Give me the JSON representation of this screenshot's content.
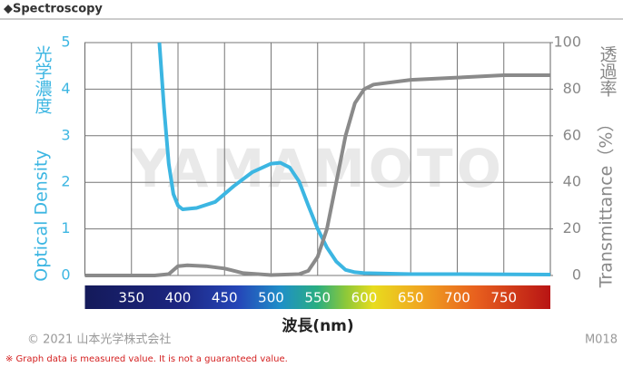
{
  "header": "◆Spectroscopy",
  "chart_data": {
    "type": "line",
    "watermark": "YAMAMOTO",
    "xlabel": "波長(nm)",
    "ylabel": "Optical Density",
    "ylabel_ja": "光学濃度",
    "y2label": "Transmittance（%）",
    "y2label_ja": "透過率",
    "xlim": [
      300,
      800
    ],
    "xticks": [
      350,
      400,
      450,
      500,
      550,
      600,
      650,
      700,
      750
    ],
    "ylim": [
      0,
      5
    ],
    "yticks": [
      0,
      1,
      2,
      3,
      4,
      5
    ],
    "y2lim": [
      0,
      100
    ],
    "y2ticks": [
      0,
      20,
      40,
      60,
      80,
      100
    ],
    "grid": true,
    "series": [
      {
        "name": "Optical Density",
        "color": "#3cb6e2",
        "x": [
          380,
          385,
          390,
          395,
          400,
          405,
          420,
          440,
          460,
          480,
          500,
          510,
          520,
          530,
          540,
          550,
          560,
          570,
          580,
          590,
          600,
          650,
          700,
          800
        ],
        "values": [
          5,
          3.6,
          2.4,
          1.75,
          1.5,
          1.42,
          1.45,
          1.58,
          1.92,
          2.22,
          2.4,
          2.42,
          2.32,
          2.02,
          1.5,
          1.0,
          0.6,
          0.3,
          0.12,
          0.07,
          0.05,
          0.03,
          0.03,
          0.02
        ]
      },
      {
        "name": "Transmittance",
        "color": "#8a8a8a",
        "axis": "y2",
        "x": [
          300,
          375,
          390,
          400,
          410,
          430,
          450,
          470,
          500,
          530,
          540,
          550,
          560,
          570,
          580,
          590,
          600,
          610,
          650,
          700,
          750,
          800
        ],
        "values": [
          0,
          0,
          0.6,
          4,
          4.4,
          4,
          3,
          1,
          0.2,
          0.6,
          2,
          8,
          20,
          40,
          60,
          74,
          80,
          82,
          84,
          85,
          86,
          86
        ]
      }
    ]
  },
  "footer": {
    "copyright": "© 2021 山本光学株式会社",
    "code": "M018",
    "note": "※ Graph data is measured value. It is not a guaranteed value."
  }
}
